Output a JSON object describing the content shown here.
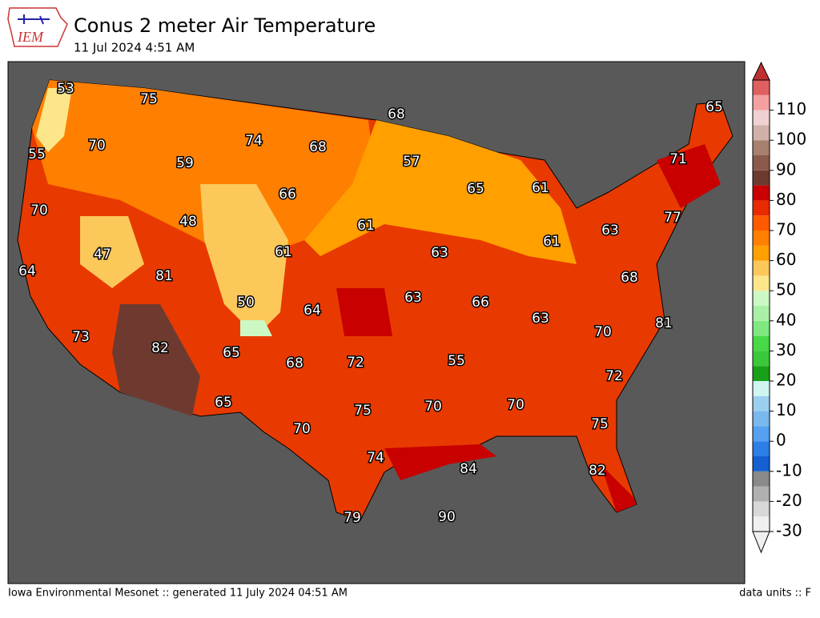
{
  "header": {
    "logo": "IEM",
    "title": "Conus 2 meter Air Temperature",
    "subtitle": "11 Jul 2024 4:51 AM"
  },
  "map_labels": [
    53,
    75,
    68,
    65,
    55,
    70,
    74,
    68,
    57,
    71,
    59,
    66,
    65,
    61,
    70,
    48,
    61,
    77,
    63,
    61,
    47,
    61,
    63,
    64,
    81,
    68,
    50,
    64,
    63,
    66,
    63,
    70,
    81,
    73,
    82,
    65,
    68,
    72,
    55,
    72,
    65,
    75,
    70,
    70,
    75,
    70,
    74,
    84,
    82,
    79,
    90
  ],
  "colorbar": {
    "ticks": [
      -30,
      -20,
      -10,
      0,
      10,
      20,
      30,
      40,
      50,
      60,
      70,
      80,
      90,
      100,
      110
    ],
    "lim": [
      -30,
      120
    ],
    "colors": [
      "#f0f0f0",
      "#d8d8d8",
      "#b0b0b0",
      "#8a8a8a",
      "#1560d0",
      "#2e7ee8",
      "#55a0f0",
      "#7ab8ee",
      "#9ad0ee",
      "#d0f4f0",
      "#19a019",
      "#3ac83a",
      "#48d848",
      "#80e880",
      "#a8f0a8",
      "#ccf8c4",
      "#fde68a",
      "#fcc85a",
      "#ff9f00",
      "#ff7f00",
      "#ff5a00",
      "#e82a00",
      "#c80000",
      "#6e3a30",
      "#8b5a4a",
      "#a88070",
      "#d0b0a8",
      "#f0d0d0",
      "#f4a0a0",
      "#e06060"
    ],
    "under_color": "#f0f0f0",
    "over_color": "#c03030"
  },
  "footer": {
    "left": "Iowa Environmental Mesonet :: generated 11 July 2024 04:51 AM",
    "right": "data units :: F"
  }
}
